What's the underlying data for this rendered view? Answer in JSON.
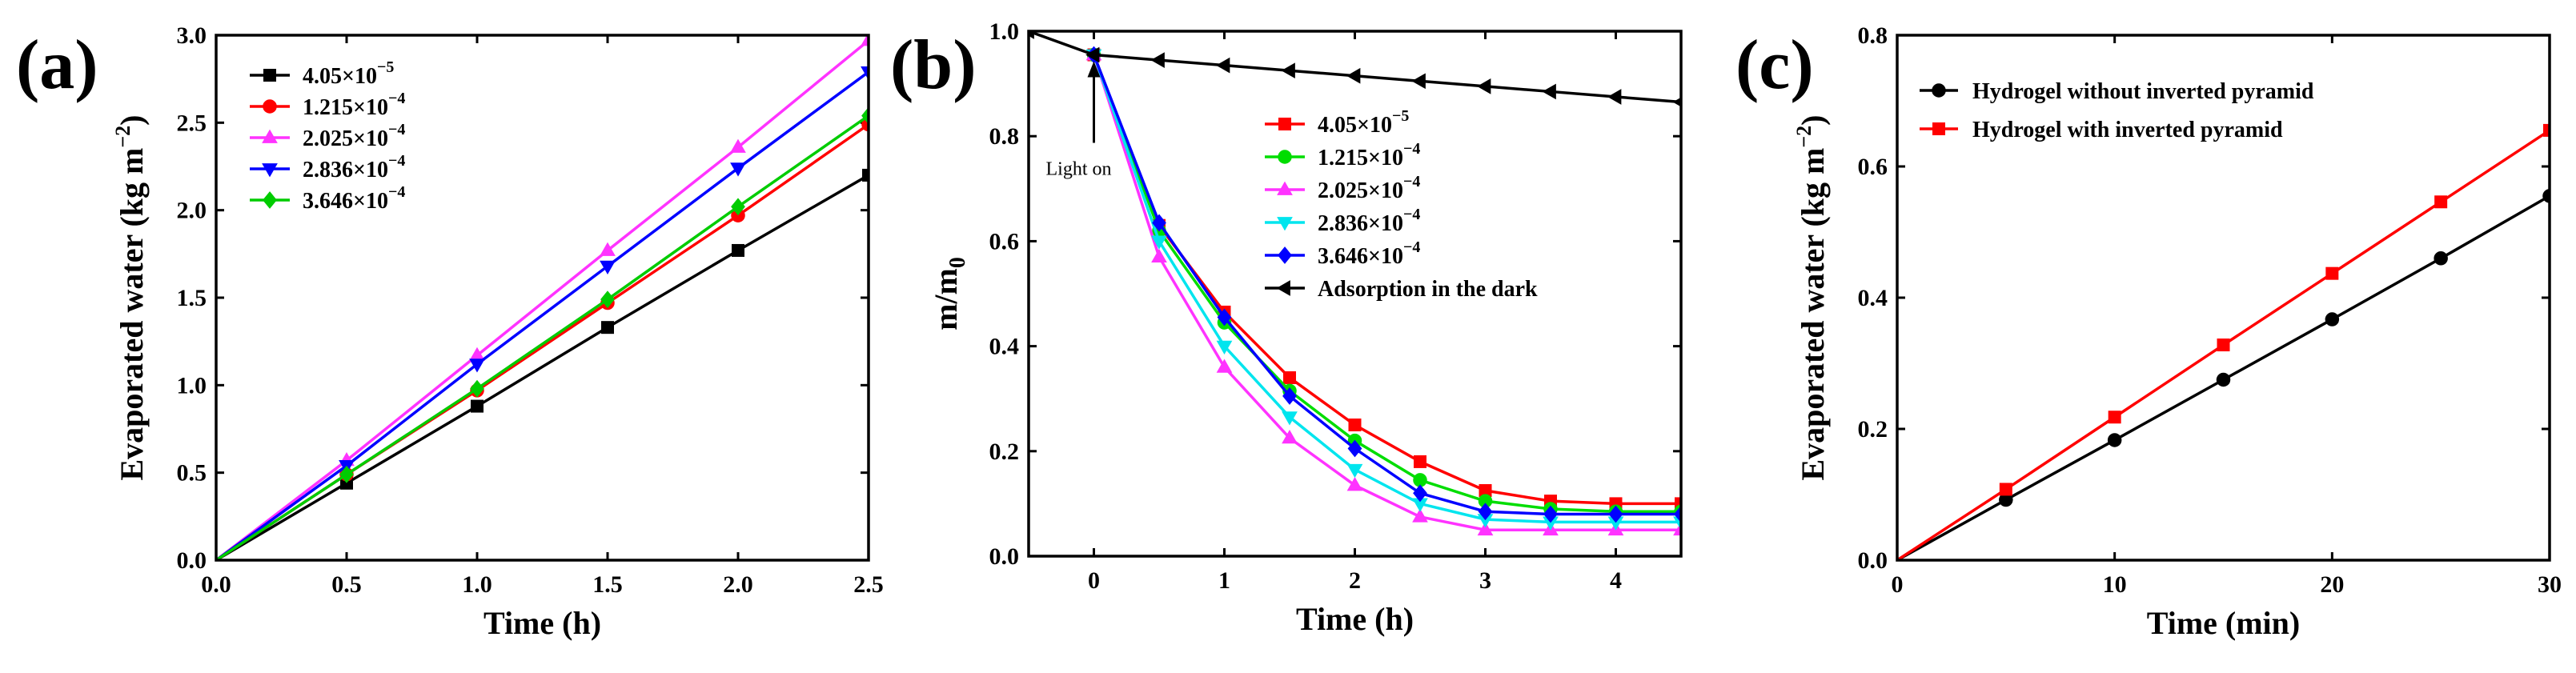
{
  "chart_data": [
    {
      "panel": "(a)",
      "type": "line",
      "xlabel": "Time (h)",
      "ylabel": "Evaporated water (kg m",
      "ylabel_sup": "−2",
      "ylabel_end": ")",
      "xlim": [
        0,
        2.5
      ],
      "ylim": [
        0,
        3.0
      ],
      "xticks": [
        0,
        0.5,
        1,
        1.5,
        2,
        2.5
      ],
      "xtick_labels": [
        "0.0",
        "0.5",
        "1.0",
        "1.5",
        "2.0",
        "2.5"
      ],
      "yticks": [
        0,
        0.5,
        1,
        1.5,
        2,
        2.5,
        3
      ],
      "ytick_labels": [
        "0.0",
        "0.5",
        "1.0",
        "1.5",
        "2.0",
        "2.5",
        "3.0"
      ],
      "legend_position": "top-left",
      "x": [
        0,
        0.5,
        1,
        1.5,
        2,
        2.5
      ],
      "series": [
        {
          "name": "4.05×10",
          "exp": "−5",
          "color": "#000000",
          "marker": "square",
          "values": [
            0,
            0.44,
            0.88,
            1.33,
            1.77,
            2.2
          ]
        },
        {
          "name": "1.215×10",
          "exp": "−4",
          "color": "#ff0000",
          "marker": "circle",
          "values": [
            0,
            0.49,
            0.97,
            1.47,
            1.97,
            2.49
          ]
        },
        {
          "name": "2.025×10",
          "exp": "−4",
          "color": "#ff33ff",
          "marker": "triangle-up",
          "values": [
            0,
            0.57,
            1.17,
            1.77,
            2.36,
            2.97
          ]
        },
        {
          "name": "2.836×10",
          "exp": "−4",
          "color": "#0000ff",
          "marker": "triangle-down",
          "values": [
            0,
            0.54,
            1.12,
            1.68,
            2.24,
            2.79
          ]
        },
        {
          "name": "3.646×10",
          "exp": "−4",
          "color": "#00cc00",
          "marker": "diamond",
          "values": [
            0,
            0.49,
            0.98,
            1.49,
            2.02,
            2.54
          ]
        }
      ]
    },
    {
      "panel": "(b)",
      "type": "line",
      "xlabel": "Time (h)",
      "ylabel": "m/m",
      "ylabel_sub": "0",
      "xlim": [
        -0.5,
        4.5
      ],
      "ylim": [
        0,
        1.0
      ],
      "xticks": [
        0,
        1,
        2,
        3,
        4
      ],
      "xtick_labels": [
        "0",
        "1",
        "2",
        "3",
        "4"
      ],
      "yticks": [
        0,
        0.2,
        0.4,
        0.6,
        0.8,
        1.0
      ],
      "ytick_labels": [
        "0.0",
        "0.2",
        "0.4",
        "0.6",
        "0.8",
        "1.0"
      ],
      "legend_position": "middle-right",
      "annotation": {
        "text": "Light on",
        "x": 0,
        "y": 0.955
      },
      "series": [
        {
          "name": "4.05×10",
          "exp": "−5",
          "color": "#ff0000",
          "marker": "square",
          "x": [
            0,
            0.5,
            1,
            1.5,
            2,
            2.5,
            3,
            3.5,
            4,
            4.5
          ],
          "values": [
            0.955,
            0.63,
            0.465,
            0.34,
            0.25,
            0.18,
            0.125,
            0.105,
            0.1,
            0.1
          ]
        },
        {
          "name": "1.215×10",
          "exp": "−4",
          "color": "#00dd00",
          "marker": "circle",
          "x": [
            0,
            0.5,
            1,
            1.5,
            2,
            2.5,
            3,
            3.5,
            4,
            4.5
          ],
          "values": [
            0.955,
            0.62,
            0.445,
            0.315,
            0.22,
            0.145,
            0.105,
            0.09,
            0.085,
            0.085
          ]
        },
        {
          "name": "2.025×10",
          "exp": "−4",
          "color": "#ff33ff",
          "marker": "triangle-up",
          "x": [
            0,
            0.5,
            1,
            1.5,
            2,
            2.5,
            3,
            3.5,
            4,
            4.5
          ],
          "values": [
            0.955,
            0.57,
            0.36,
            0.225,
            0.135,
            0.075,
            0.05,
            0.05,
            0.05,
            0.05
          ]
        },
        {
          "name": "2.836×10",
          "exp": "−4",
          "color": "#00e5ee",
          "marker": "triangle-down",
          "x": [
            0,
            0.5,
            1,
            1.5,
            2,
            2.5,
            3,
            3.5,
            4,
            4.5
          ],
          "values": [
            0.955,
            0.6,
            0.4,
            0.265,
            0.165,
            0.1,
            0.07,
            0.065,
            0.065,
            0.065
          ]
        },
        {
          "name": "3.646×10",
          "exp": "−4",
          "color": "#0000ff",
          "marker": "diamond",
          "x": [
            0,
            0.5,
            1,
            1.5,
            2,
            2.5,
            3,
            3.5,
            4,
            4.5
          ],
          "values": [
            0.955,
            0.635,
            0.455,
            0.305,
            0.205,
            0.12,
            0.085,
            0.08,
            0.08,
            0.08
          ]
        },
        {
          "name": "Adsorption in the dark",
          "exp": "",
          "color": "#000000",
          "marker": "triangle-left",
          "x": [
            -0.5,
            0,
            0.5,
            1,
            1.5,
            2,
            2.5,
            3,
            3.5,
            4,
            4.5
          ],
          "values": [
            1.0,
            0.955,
            0.945,
            0.935,
            0.925,
            0.915,
            0.905,
            0.895,
            0.885,
            0.875,
            0.865
          ]
        }
      ]
    },
    {
      "panel": "(c)",
      "type": "line",
      "xlabel": "Time (min)",
      "ylabel": "Evaporated water (kg m",
      "ylabel_sup": "−2",
      "ylabel_end": ")",
      "xlim": [
        0,
        30
      ],
      "ylim": [
        0,
        0.8
      ],
      "xticks": [
        0,
        10,
        20,
        30
      ],
      "xtick_labels": [
        "0",
        "10",
        "20",
        "30"
      ],
      "yticks": [
        0,
        0.2,
        0.4,
        0.6,
        0.8
      ],
      "ytick_labels": [
        "0.0",
        "0.2",
        "0.4",
        "0.6",
        "0.8"
      ],
      "legend_position": "top-left",
      "x": [
        0,
        5,
        10,
        15,
        20,
        25,
        30
      ],
      "series": [
        {
          "name": "Hydrogel without inverted pyramid",
          "exp": "",
          "color": "#000000",
          "marker": "circle",
          "values": [
            0,
            0.092,
            0.183,
            0.275,
            0.367,
            0.46,
            0.555
          ]
        },
        {
          "name": "Hydrogel with inverted pyramid",
          "exp": "",
          "color": "#ff0000",
          "marker": "square",
          "values": [
            0,
            0.108,
            0.218,
            0.328,
            0.437,
            0.546,
            0.655
          ]
        }
      ]
    }
  ]
}
